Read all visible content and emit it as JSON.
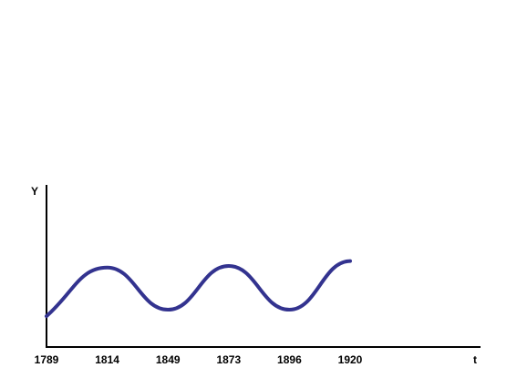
{
  "chart_data": {
    "type": "line",
    "y_label": "Y",
    "x_label": "t",
    "categories": [
      "1789",
      "1814",
      "1849",
      "1873",
      "1896",
      "1920"
    ],
    "values": [
      19,
      49,
      23,
      50,
      23,
      53
    ],
    "color": "#33338f",
    "ylim": [
      0,
      100
    ]
  }
}
